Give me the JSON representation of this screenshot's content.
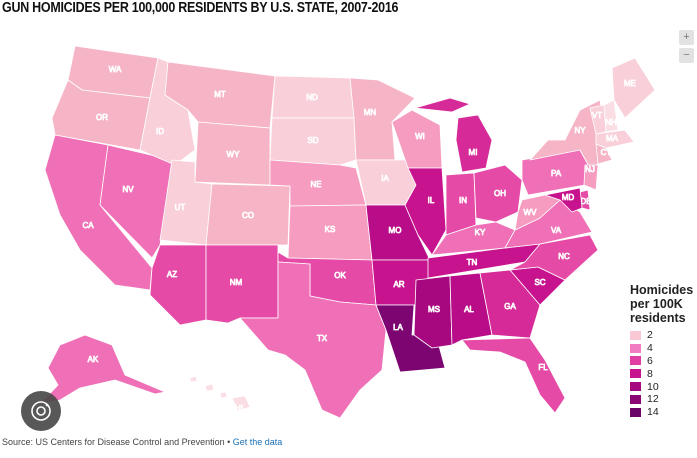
{
  "title": "GUN HOMICIDES PER 100,000 RESIDENTS BY U.S. STATE, 2007-2016",
  "zoom": {
    "in_label": "+",
    "out_label": "−"
  },
  "legend": {
    "title": "Homicides per 100K residents",
    "items": [
      {
        "label": "2",
        "color": "#f9c8d4"
      },
      {
        "label": "4",
        "color": "#f27cc1"
      },
      {
        "label": "6",
        "color": "#e03ea5"
      },
      {
        "label": "8",
        "color": "#c8138f"
      },
      {
        "label": "10",
        "color": "#a8087f"
      },
      {
        "label": "12",
        "color": "#8a0675"
      },
      {
        "label": "14",
        "color": "#6a0566"
      }
    ]
  },
  "source": {
    "text": "Source: US Centers for Disease Control and Prevention • ",
    "link": "Get the data"
  },
  "states": [
    {
      "abbr": "WA",
      "value": 2.5
    },
    {
      "abbr": "OR",
      "value": 2.2
    },
    {
      "abbr": "CA",
      "value": 4.5
    },
    {
      "abbr": "NV",
      "value": 4.6
    },
    {
      "abbr": "ID",
      "value": 1.7
    },
    {
      "abbr": "MT",
      "value": 2.6
    },
    {
      "abbr": "WY",
      "value": 2.5
    },
    {
      "abbr": "UT",
      "value": 1.6
    },
    {
      "abbr": "AZ",
      "value": 5.1
    },
    {
      "abbr": "CO",
      "value": 2.9
    },
    {
      "abbr": "NM",
      "value": 5.0
    },
    {
      "abbr": "ND",
      "value": 1.5
    },
    {
      "abbr": "SD",
      "value": 1.7
    },
    {
      "abbr": "NE",
      "value": 3.2
    },
    {
      "abbr": "KS",
      "value": 3.9
    },
    {
      "abbr": "OK",
      "value": 5.6
    },
    {
      "abbr": "TX",
      "value": 4.4
    },
    {
      "abbr": "MN",
      "value": 2.0
    },
    {
      "abbr": "IA",
      "value": 1.6
    },
    {
      "abbr": "MO",
      "value": 8.6
    },
    {
      "abbr": "AR",
      "value": 7.6
    },
    {
      "abbr": "LA",
      "value": 12.4
    },
    {
      "abbr": "WI",
      "value": 3.0
    },
    {
      "abbr": "IL",
      "value": 7.6
    },
    {
      "abbr": "MI",
      "value": 6.8
    },
    {
      "abbr": "IN",
      "value": 5.6
    },
    {
      "abbr": "OH",
      "value": 5.2
    },
    {
      "abbr": "KY",
      "value": 4.2
    },
    {
      "abbr": "TN",
      "value": 7.4
    },
    {
      "abbr": "MS",
      "value": 9.4
    },
    {
      "abbr": "AL",
      "value": 8.8
    },
    {
      "abbr": "GA",
      "value": 6.7
    },
    {
      "abbr": "FL",
      "value": 5.0
    },
    {
      "abbr": "SC",
      "value": 7.4
    },
    {
      "abbr": "NC",
      "value": 5.2
    },
    {
      "abbr": "VA",
      "value": 4.2
    },
    {
      "abbr": "WV",
      "value": 3.8
    },
    {
      "abbr": "PA",
      "value": 4.8
    },
    {
      "abbr": "NY",
      "value": 2.8
    },
    {
      "abbr": "VT",
      "value": 1.0
    },
    {
      "abbr": "NH",
      "value": 0.8
    },
    {
      "abbr": "ME",
      "value": 1.0
    },
    {
      "abbr": "MA",
      "value": 1.6
    },
    {
      "abbr": "CT",
      "value": 2.4
    },
    {
      "abbr": "NJ",
      "value": 3.6
    },
    {
      "abbr": "DE",
      "value": 5.6
    },
    {
      "abbr": "MD",
      "value": 7.8
    },
    {
      "abbr": "AK",
      "value": 4.2
    },
    {
      "abbr": "HI",
      "value": 0.8
    }
  ]
}
